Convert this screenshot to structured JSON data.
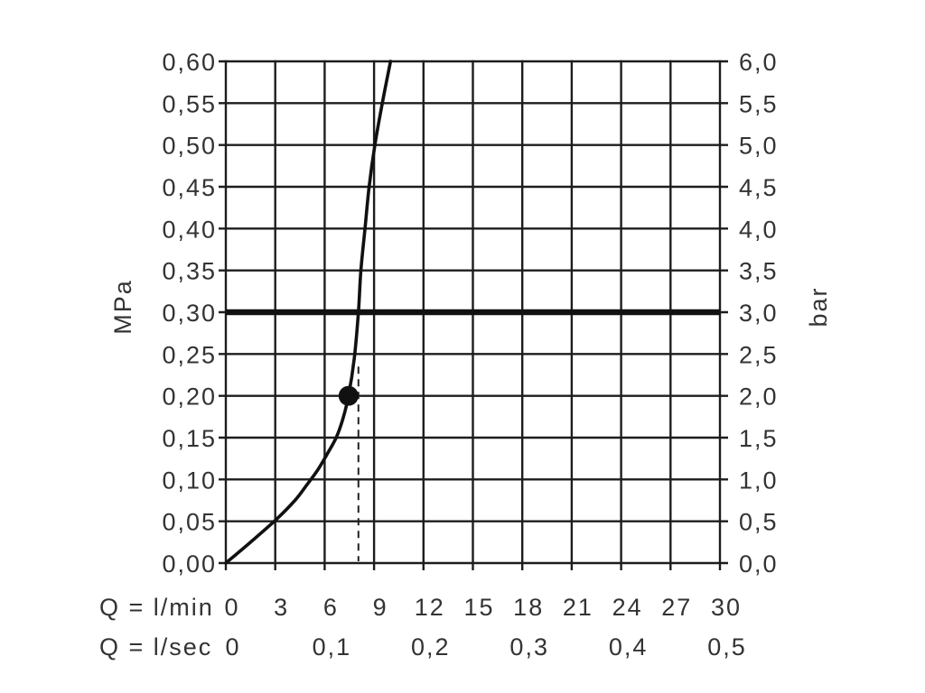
{
  "chart_data": {
    "type": "line",
    "grid": true,
    "xlim": [
      0,
      30
    ],
    "ylim": [
      0,
      0.6
    ],
    "x_primary": {
      "label": "Q = l/min",
      "range": [
        0,
        30
      ],
      "values": [
        0,
        3,
        6,
        9,
        12,
        15,
        18,
        21,
        24,
        27,
        30
      ],
      "ticks": [
        "0",
        "3",
        "6",
        "9",
        "12",
        "15",
        "18",
        "21",
        "24",
        "27",
        "30"
      ]
    },
    "x_secondary": {
      "label": "Q = l/sec",
      "range": [
        0,
        0.5
      ],
      "values": [
        0,
        0.1,
        0.2,
        0.3,
        0.4,
        0.5
      ],
      "ticks": [
        "0",
        "0,1",
        "0,2",
        "0,3",
        "0,4",
        "0,5"
      ]
    },
    "y_left": {
      "label": "MPa",
      "range": [
        0,
        0.6
      ],
      "values": [
        0,
        0.05,
        0.1,
        0.15,
        0.2,
        0.25,
        0.3,
        0.35,
        0.4,
        0.45,
        0.5,
        0.55,
        0.6
      ],
      "ticks": [
        "0,00",
        "0,05",
        "0,10",
        "0,15",
        "0,20",
        "0,25",
        "0,30",
        "0,35",
        "0,40",
        "0,45",
        "0,50",
        "0,55",
        "0,60"
      ]
    },
    "y_right": {
      "label": "bar",
      "range": [
        0,
        6
      ],
      "values": [
        0,
        0.5,
        1,
        1.5,
        2,
        2.5,
        3,
        3.5,
        4,
        4.5,
        5,
        5.5,
        6
      ],
      "ticks": [
        "0,0",
        "0,5",
        "1,0",
        "1,5",
        "2,0",
        "2,5",
        "3,0",
        "3,5",
        "4,0",
        "4,5",
        "5,0",
        "5,5",
        "6,0"
      ]
    },
    "series": [
      {
        "x": [
          0,
          1.5,
          3.0,
          4.2,
          4.9,
          5.6,
          6.2,
          6.7,
          7.1,
          7.45,
          7.8,
          8.05,
          8.2,
          8.45,
          8.7,
          9.05,
          9.5,
          10.0
        ],
        "y": [
          0,
          0.025,
          0.051,
          0.075,
          0.093,
          0.112,
          0.132,
          0.15,
          0.172,
          0.2,
          0.245,
          0.3,
          0.35,
          0.4,
          0.45,
          0.5,
          0.55,
          0.6
        ]
      }
    ],
    "reference_line": {
      "y": 0.3
    },
    "dashed_line": {
      "x": 8.05,
      "y_from": 0,
      "y_to": 0.235
    },
    "marker_point": {
      "x": 7.45,
      "y": 0.2
    }
  }
}
